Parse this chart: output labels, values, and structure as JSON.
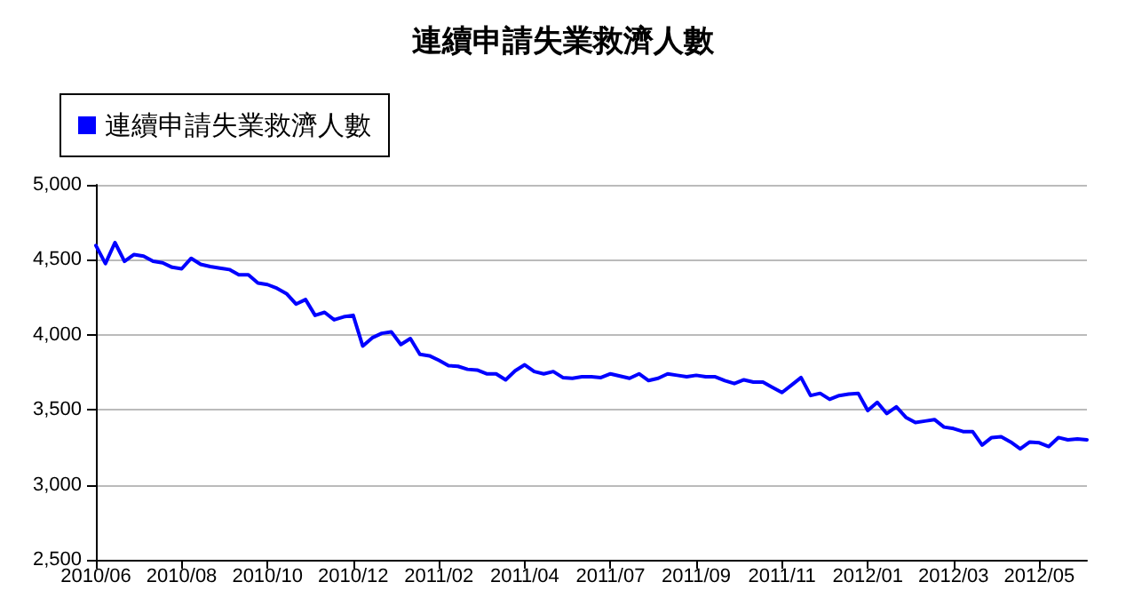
{
  "chart_data": {
    "type": "line",
    "title": "連續申請失業救濟人數",
    "categories": [
      "2010/06",
      null,
      null,
      null,
      null,
      null,
      null,
      null,
      null,
      "2010/08",
      null,
      null,
      null,
      null,
      null,
      null,
      null,
      null,
      "2010/10",
      null,
      null,
      null,
      null,
      null,
      null,
      null,
      null,
      "2010/12",
      null,
      null,
      null,
      null,
      null,
      null,
      null,
      null,
      "2011/02",
      null,
      null,
      null,
      null,
      null,
      null,
      null,
      null,
      "2011/04",
      null,
      null,
      null,
      null,
      null,
      null,
      null,
      null,
      "2011/07",
      null,
      null,
      null,
      null,
      null,
      null,
      null,
      null,
      "2011/09",
      null,
      null,
      null,
      null,
      null,
      null,
      null,
      null,
      "2011/11",
      null,
      null,
      null,
      null,
      null,
      null,
      null,
      null,
      "2012/01",
      null,
      null,
      null,
      null,
      null,
      null,
      null,
      null,
      "2012/03",
      null,
      null,
      null,
      null,
      null,
      null,
      null,
      null,
      "2012/05",
      null,
      null,
      null,
      null,
      null
    ],
    "series": [
      {
        "name": "連續申請失業救濟人數",
        "color": "#0000ff",
        "values": [
          4595,
          4475,
          4615,
          4490,
          4535,
          4525,
          4490,
          4480,
          4450,
          4440,
          4510,
          4470,
          4455,
          4445,
          4435,
          4400,
          4400,
          4345,
          4335,
          4310,
          4275,
          4205,
          4235,
          4130,
          4150,
          4100,
          4120,
          4130,
          3925,
          3980,
          4010,
          4020,
          3935,
          3975,
          3870,
          3860,
          3830,
          3795,
          3790,
          3770,
          3765,
          3740,
          3740,
          3700,
          3760,
          3800,
          3755,
          3740,
          3755,
          3715,
          3710,
          3720,
          3720,
          3715,
          3740,
          3725,
          3710,
          3740,
          3695,
          3710,
          3740,
          3730,
          3720,
          3730,
          3720,
          3720,
          3695,
          3675,
          3700,
          3685,
          3685,
          3650,
          3615,
          3665,
          3715,
          3595,
          3610,
          3570,
          3595,
          3605,
          3610,
          3495,
          3550,
          3475,
          3520,
          3450,
          3415,
          3425,
          3435,
          3385,
          3375,
          3355,
          3355,
          3265,
          3315,
          3320,
          3285,
          3240,
          3285,
          3280,
          3255,
          3315,
          3300,
          3305,
          3300
        ]
      }
    ],
    "ylim": [
      2500,
      5000
    ],
    "yticks": [
      {
        "value": 2500,
        "label": "2,500"
      },
      {
        "value": 3000,
        "label": "3,000"
      },
      {
        "value": 3500,
        "label": "3,500"
      },
      {
        "value": 4000,
        "label": "4,000"
      },
      {
        "value": 4500,
        "label": "4,500"
      },
      {
        "value": 5000,
        "label": "5,000"
      }
    ],
    "grid": "y",
    "legend": "top left",
    "marker": "none",
    "line_style": "solid"
  }
}
